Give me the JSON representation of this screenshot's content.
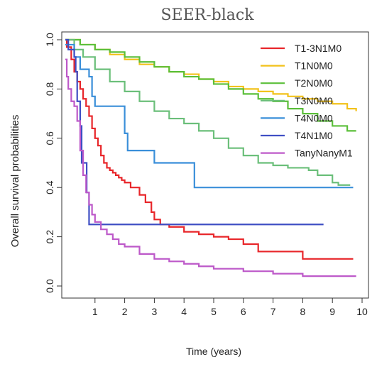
{
  "chart_data": {
    "type": "line",
    "title": "SEER-black",
    "xlabel": "Time (years)",
    "ylabel": "Overall survival probabilities",
    "xlim": [
      0,
      10
    ],
    "ylim": [
      0,
      1
    ],
    "x_ticks": [
      1,
      2,
      3,
      4,
      5,
      6,
      7,
      8,
      9,
      10
    ],
    "y_ticks": [
      0.0,
      0.2,
      0.4,
      0.6,
      0.8,
      1.0
    ],
    "y_tick_labels": [
      "0.0",
      "0.2",
      "0.4",
      "0.6",
      "0.8",
      "1.0"
    ],
    "legend_position": "top-right",
    "grid": false,
    "series": [
      {
        "name": "T1-3N1M0",
        "color": "#e8262a",
        "points": [
          [
            0,
            1.0
          ],
          [
            0.05,
            0.97
          ],
          [
            0.2,
            0.92
          ],
          [
            0.3,
            0.87
          ],
          [
            0.4,
            0.83
          ],
          [
            0.5,
            0.8
          ],
          [
            0.6,
            0.76
          ],
          [
            0.7,
            0.73
          ],
          [
            0.8,
            0.69
          ],
          [
            0.9,
            0.64
          ],
          [
            1.0,
            0.6
          ],
          [
            1.1,
            0.57
          ],
          [
            1.2,
            0.53
          ],
          [
            1.3,
            0.5
          ],
          [
            1.4,
            0.48
          ],
          [
            1.5,
            0.47
          ],
          [
            1.6,
            0.46
          ],
          [
            1.7,
            0.45
          ],
          [
            1.8,
            0.44
          ],
          [
            1.9,
            0.43
          ],
          [
            2.0,
            0.42
          ],
          [
            2.2,
            0.4
          ],
          [
            2.5,
            0.37
          ],
          [
            2.7,
            0.34
          ],
          [
            2.9,
            0.3
          ],
          [
            3.0,
            0.27
          ],
          [
            3.2,
            0.25
          ],
          [
            3.5,
            0.24
          ],
          [
            3.8,
            0.24
          ],
          [
            4.0,
            0.22
          ],
          [
            4.5,
            0.21
          ],
          [
            5.0,
            0.2
          ],
          [
            5.5,
            0.19
          ],
          [
            6.0,
            0.17
          ],
          [
            6.5,
            0.14
          ],
          [
            7.0,
            0.14
          ],
          [
            7.5,
            0.14
          ],
          [
            8.0,
            0.11
          ],
          [
            8.5,
            0.11
          ],
          [
            9.0,
            0.11
          ],
          [
            9.7,
            0.11
          ]
        ]
      },
      {
        "name": "T1N0M0",
        "color": "#f2c21b",
        "points": [
          [
            0,
            1.0
          ],
          [
            0.5,
            0.98
          ],
          [
            1.0,
            0.96
          ],
          [
            1.5,
            0.94
          ],
          [
            2.0,
            0.92
          ],
          [
            2.5,
            0.9
          ],
          [
            3.0,
            0.89
          ],
          [
            3.5,
            0.87
          ],
          [
            4.0,
            0.86
          ],
          [
            4.5,
            0.84
          ],
          [
            5.0,
            0.83
          ],
          [
            5.5,
            0.81
          ],
          [
            6.0,
            0.8
          ],
          [
            6.5,
            0.79
          ],
          [
            7.0,
            0.78
          ],
          [
            7.5,
            0.77
          ],
          [
            8.0,
            0.76
          ],
          [
            8.5,
            0.75
          ],
          [
            9.0,
            0.74
          ],
          [
            9.5,
            0.72
          ],
          [
            9.8,
            0.71
          ]
        ]
      },
      {
        "name": "T2N0M0",
        "color": "#5bbf3a",
        "points": [
          [
            0,
            1.0
          ],
          [
            0.5,
            0.98
          ],
          [
            1.0,
            0.96
          ],
          [
            1.5,
            0.95
          ],
          [
            2.0,
            0.93
          ],
          [
            2.5,
            0.91
          ],
          [
            3.0,
            0.89
          ],
          [
            3.5,
            0.87
          ],
          [
            4.0,
            0.85
          ],
          [
            4.5,
            0.84
          ],
          [
            5.0,
            0.82
          ],
          [
            5.5,
            0.8
          ],
          [
            6.0,
            0.78
          ],
          [
            6.5,
            0.76
          ],
          [
            7.0,
            0.75
          ],
          [
            7.5,
            0.72
          ],
          [
            8.0,
            0.7
          ],
          [
            8.5,
            0.67
          ],
          [
            9.0,
            0.65
          ],
          [
            9.5,
            0.63
          ],
          [
            9.8,
            0.63
          ]
        ]
      },
      {
        "name": "T3N0M0",
        "color": "#6bbf7a",
        "points": [
          [
            0,
            1.0
          ],
          [
            0.3,
            0.96
          ],
          [
            0.6,
            0.93
          ],
          [
            1.0,
            0.88
          ],
          [
            1.5,
            0.83
          ],
          [
            2.0,
            0.79
          ],
          [
            2.5,
            0.75
          ],
          [
            3.0,
            0.71
          ],
          [
            3.5,
            0.68
          ],
          [
            4.0,
            0.66
          ],
          [
            4.5,
            0.63
          ],
          [
            5.0,
            0.6
          ],
          [
            5.5,
            0.56
          ],
          [
            6.0,
            0.53
          ],
          [
            6.5,
            0.5
          ],
          [
            7.0,
            0.49
          ],
          [
            7.5,
            0.48
          ],
          [
            8.0,
            0.48
          ],
          [
            8.2,
            0.47
          ],
          [
            8.5,
            0.45
          ],
          [
            9.0,
            0.42
          ],
          [
            9.2,
            0.41
          ],
          [
            9.6,
            0.41
          ]
        ]
      },
      {
        "name": "T4N0M0",
        "color": "#3a8fd9",
        "points": [
          [
            0,
            0.98
          ],
          [
            0.3,
            0.93
          ],
          [
            0.5,
            0.88
          ],
          [
            0.8,
            0.85
          ],
          [
            0.9,
            0.77
          ],
          [
            1.0,
            0.73
          ],
          [
            1.5,
            0.73
          ],
          [
            1.8,
            0.73
          ],
          [
            2.0,
            0.62
          ],
          [
            2.1,
            0.55
          ],
          [
            2.8,
            0.55
          ],
          [
            3.0,
            0.5
          ],
          [
            3.5,
            0.5
          ],
          [
            4.3,
            0.5
          ],
          [
            4.35,
            0.4
          ],
          [
            5.0,
            0.4
          ],
          [
            6.0,
            0.4
          ],
          [
            7.0,
            0.4
          ],
          [
            8.0,
            0.4
          ],
          [
            9.0,
            0.4
          ],
          [
            9.7,
            0.4
          ]
        ]
      },
      {
        "name": "T4N1M0",
        "color": "#3f4fc4",
        "points": [
          [
            0,
            1.0
          ],
          [
            0.1,
            0.96
          ],
          [
            0.3,
            0.93
          ],
          [
            0.35,
            0.87
          ],
          [
            0.4,
            0.75
          ],
          [
            0.5,
            0.65
          ],
          [
            0.55,
            0.5
          ],
          [
            0.7,
            0.5
          ],
          [
            0.72,
            0.38
          ],
          [
            0.8,
            0.25
          ],
          [
            1.5,
            0.25
          ],
          [
            3.0,
            0.25
          ],
          [
            5.0,
            0.25
          ],
          [
            7.0,
            0.25
          ],
          [
            8.7,
            0.25
          ]
        ]
      },
      {
        "name": "TanyNanyM1",
        "color": "#bd59c9",
        "points": [
          [
            0,
            0.92
          ],
          [
            0.05,
            0.85
          ],
          [
            0.1,
            0.8
          ],
          [
            0.2,
            0.75
          ],
          [
            0.3,
            0.73
          ],
          [
            0.4,
            0.67
          ],
          [
            0.5,
            0.55
          ],
          [
            0.6,
            0.45
          ],
          [
            0.7,
            0.38
          ],
          [
            0.8,
            0.33
          ],
          [
            0.9,
            0.29
          ],
          [
            1.0,
            0.26
          ],
          [
            1.2,
            0.23
          ],
          [
            1.4,
            0.21
          ],
          [
            1.6,
            0.19
          ],
          [
            1.8,
            0.17
          ],
          [
            2.0,
            0.16
          ],
          [
            2.5,
            0.13
          ],
          [
            3.0,
            0.11
          ],
          [
            3.5,
            0.1
          ],
          [
            4.0,
            0.09
          ],
          [
            4.5,
            0.08
          ],
          [
            5.0,
            0.07
          ],
          [
            6.0,
            0.06
          ],
          [
            7.0,
            0.05
          ],
          [
            8.0,
            0.04
          ],
          [
            9.0,
            0.04
          ],
          [
            9.8,
            0.04
          ]
        ]
      }
    ]
  }
}
